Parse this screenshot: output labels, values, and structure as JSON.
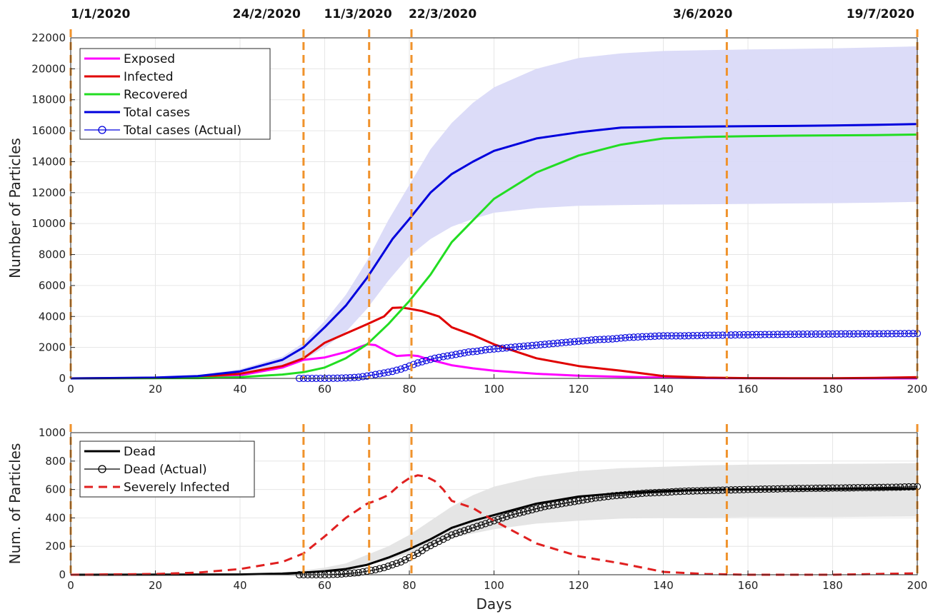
{
  "chart_data": [
    {
      "type": "line",
      "xlabel": "",
      "ylabel": "Number of Particles",
      "xlim": [
        0,
        200
      ],
      "ylim": [
        0,
        22000
      ],
      "xticks": [
        0,
        20,
        40,
        60,
        80,
        100,
        120,
        140,
        160,
        180,
        200
      ],
      "yticks": [
        0,
        2000,
        4000,
        6000,
        8000,
        10000,
        12000,
        14000,
        16000,
        18000,
        20000,
        22000
      ],
      "grid": true,
      "legend_position": "top-left",
      "event_lines": {
        "days": [
          0,
          55,
          70.5,
          80.5,
          155,
          200
        ],
        "labels": [
          "1/1/2020",
          "24/2/2020",
          "11/3/2020",
          "22/3/2020",
          "3/6/2020",
          "19/7/2020"
        ],
        "color": "#f0922b"
      },
      "band": {
        "color": "#dadaf8",
        "x": [
          0,
          30,
          40,
          50,
          55,
          60,
          65,
          70,
          75,
          80,
          85,
          90,
          95,
          100,
          110,
          120,
          130,
          140,
          150,
          160,
          170,
          180,
          190,
          200
        ],
        "upper": [
          0,
          200,
          600,
          1400,
          2300,
          3700,
          5400,
          7600,
          10200,
          12500,
          14800,
          16500,
          17800,
          18800,
          20000,
          20700,
          21000,
          21150,
          21200,
          21250,
          21280,
          21320,
          21380,
          21450
        ],
        "lower": [
          0,
          60,
          250,
          700,
          1200,
          2000,
          3000,
          4500,
          6300,
          7900,
          9000,
          9800,
          10300,
          10700,
          11000,
          11150,
          11200,
          11230,
          11250,
          11270,
          11300,
          11320,
          11350,
          11400
        ]
      },
      "series": [
        {
          "name": "Exposed",
          "color": "#ff00ff",
          "x": [
            0,
            20,
            30,
            40,
            50,
            55,
            60,
            65,
            70,
            72,
            75,
            77,
            80,
            82,
            85,
            90,
            95,
            100,
            110,
            120,
            130,
            140,
            150,
            160,
            170,
            180,
            190,
            200
          ],
          "y": [
            0,
            20,
            60,
            200,
            700,
            1200,
            1350,
            1700,
            2200,
            2150,
            1700,
            1450,
            1500,
            1450,
            1200,
            850,
            650,
            500,
            300,
            170,
            100,
            50,
            20,
            10,
            0,
            0,
            0,
            0
          ]
        },
        {
          "name": "Infected",
          "color": "#e00000",
          "x": [
            0,
            20,
            30,
            40,
            50,
            55,
            60,
            65,
            70,
            74,
            76,
            78,
            80,
            83,
            87,
            90,
            95,
            100,
            110,
            120,
            130,
            140,
            150,
            160,
            170,
            180,
            190,
            200
          ],
          "y": [
            0,
            30,
            100,
            300,
            800,
            1300,
            2300,
            2900,
            3500,
            4000,
            4550,
            4580,
            4500,
            4350,
            4000,
            3300,
            2800,
            2200,
            1300,
            800,
            500,
            150,
            50,
            20,
            10,
            10,
            30,
            80
          ]
        },
        {
          "name": "Recovered",
          "color": "#22dd22",
          "x": [
            0,
            30,
            40,
            50,
            55,
            60,
            65,
            70,
            75,
            80,
            85,
            90,
            95,
            100,
            110,
            120,
            130,
            140,
            150,
            160,
            170,
            180,
            190,
            200
          ],
          "y": [
            0,
            20,
            80,
            250,
            400,
            700,
            1300,
            2200,
            3500,
            5000,
            6700,
            8800,
            10200,
            11600,
            13300,
            14400,
            15100,
            15500,
            15600,
            15650,
            15680,
            15700,
            15720,
            15750
          ]
        },
        {
          "name": "Total cases",
          "color": "#0000dd",
          "x": [
            0,
            20,
            30,
            40,
            50,
            55,
            60,
            65,
            70,
            76,
            80,
            85,
            90,
            95,
            100,
            110,
            120,
            130,
            140,
            150,
            160,
            170,
            180,
            190,
            200
          ],
          "y": [
            0,
            50,
            150,
            450,
            1200,
            2000,
            3300,
            4700,
            6500,
            9000,
            10300,
            12000,
            13200,
            14000,
            14700,
            15500,
            15900,
            16200,
            16250,
            16270,
            16290,
            16310,
            16340,
            16380,
            16430
          ]
        },
        {
          "name": "Total cases (Actual)",
          "color": "#0000dd",
          "markers": "circle",
          "x": [
            54,
            56,
            58,
            60,
            62,
            64,
            66,
            68,
            70,
            72,
            74,
            76,
            78,
            80,
            82,
            84,
            86,
            88,
            90,
            92,
            94,
            96,
            98,
            100,
            104,
            108,
            112,
            116,
            120,
            124,
            128,
            132,
            136,
            140,
            145,
            150,
            155,
            160,
            170,
            180,
            190,
            200
          ],
          "y": [
            0,
            0,
            0,
            0,
            10,
            20,
            40,
            80,
            150,
            250,
            350,
            450,
            600,
            800,
            1000,
            1150,
            1300,
            1400,
            1500,
            1600,
            1700,
            1750,
            1850,
            1900,
            2000,
            2100,
            2200,
            2300,
            2400,
            2500,
            2550,
            2650,
            2700,
            2750,
            2750,
            2780,
            2800,
            2820,
            2850,
            2870,
            2880,
            2900
          ]
        }
      ]
    },
    {
      "type": "line",
      "xlabel": "Days",
      "ylabel": "Num. of Particles",
      "xlim": [
        0,
        200
      ],
      "ylim": [
        0,
        1000
      ],
      "xticks": [
        0,
        20,
        40,
        60,
        80,
        100,
        120,
        140,
        160,
        180,
        200
      ],
      "yticks": [
        0,
        200,
        400,
        600,
        800,
        1000
      ],
      "grid": true,
      "legend_position": "top-left",
      "band": {
        "color": "#e4e4e4",
        "x": [
          0,
          40,
          50,
          55,
          60,
          65,
          70,
          75,
          80,
          85,
          90,
          95,
          100,
          110,
          120,
          130,
          140,
          150,
          160,
          170,
          180,
          190,
          200
        ],
        "upper": [
          0,
          5,
          15,
          30,
          50,
          80,
          140,
          200,
          280,
          380,
          480,
          560,
          620,
          690,
          730,
          750,
          760,
          770,
          775,
          778,
          780,
          782,
          785
        ],
        "lower": [
          0,
          0,
          5,
          10,
          20,
          40,
          70,
          100,
          150,
          210,
          260,
          290,
          320,
          360,
          380,
          395,
          400,
          402,
          405,
          405,
          406,
          408,
          410
        ]
      },
      "series": [
        {
          "name": "Dead",
          "color": "#000000",
          "x": [
            0,
            40,
            50,
            55,
            60,
            65,
            70,
            75,
            80,
            85,
            90,
            95,
            100,
            110,
            120,
            130,
            140,
            150,
            160,
            170,
            180,
            190,
            200
          ],
          "y": [
            0,
            2,
            8,
            15,
            25,
            40,
            70,
            120,
            180,
            250,
            330,
            380,
            420,
            500,
            550,
            575,
            590,
            598,
            600,
            602,
            603,
            604,
            605
          ]
        },
        {
          "name": "Dead (Actual)",
          "color": "#000000",
          "markers": "circle",
          "x": [
            54,
            56,
            58,
            60,
            62,
            64,
            66,
            68,
            70,
            72,
            74,
            76,
            78,
            80,
            82,
            84,
            86,
            88,
            90,
            92,
            94,
            96,
            98,
            100,
            104,
            108,
            112,
            116,
            120,
            124,
            128,
            132,
            136,
            140,
            145,
            150,
            155,
            160,
            165,
            170,
            175,
            180,
            185,
            190,
            195,
            200
          ],
          "y": [
            0,
            0,
            0,
            0,
            2,
            5,
            10,
            15,
            25,
            35,
            50,
            70,
            90,
            120,
            150,
            190,
            220,
            250,
            280,
            300,
            320,
            340,
            360,
            380,
            420,
            450,
            480,
            500,
            520,
            540,
            555,
            565,
            575,
            580,
            588,
            592,
            596,
            600,
            603,
            606,
            608,
            610,
            612,
            614,
            616,
            620
          ]
        },
        {
          "name": "Severely Infected",
          "color": "#e02020",
          "dashed": true,
          "x": [
            0,
            20,
            30,
            40,
            50,
            55,
            60,
            65,
            70,
            72,
            75,
            78,
            80,
            82,
            84,
            86,
            88,
            90,
            95,
            100,
            110,
            120,
            130,
            140,
            150,
            160,
            170,
            180,
            190,
            200
          ],
          "y": [
            0,
            5,
            15,
            40,
            90,
            150,
            270,
            400,
            500,
            520,
            560,
            640,
            680,
            700,
            690,
            660,
            600,
            520,
            470,
            380,
            220,
            130,
            80,
            20,
            5,
            0,
            0,
            0,
            5,
            10
          ]
        }
      ]
    }
  ]
}
